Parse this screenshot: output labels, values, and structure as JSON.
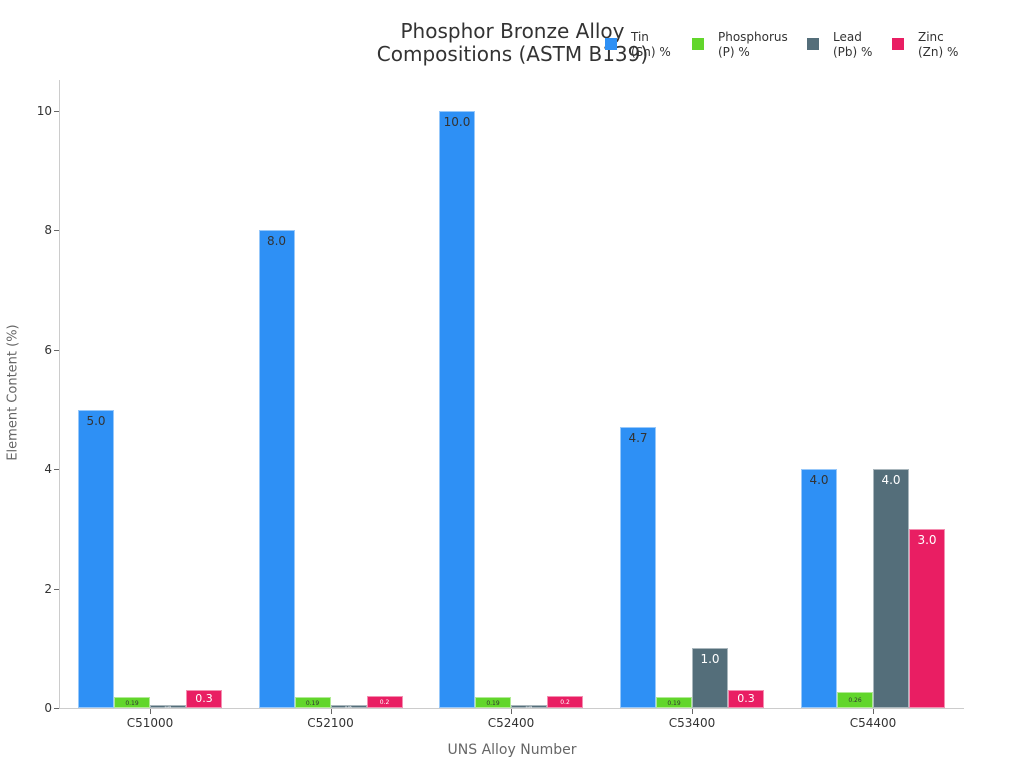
{
  "chart_data": {
    "type": "bar",
    "title": "Phosphor Bronze Alloy Compositions (ASTM B139)",
    "title_lines": [
      "Phosphor Bronze Alloy",
      "Compositions (ASTM B139)"
    ],
    "xlabel": "UNS Alloy Number",
    "ylabel": "Element Content (%)",
    "ylim": [
      0,
      10.5
    ],
    "yticks": [
      0,
      2,
      4,
      6,
      8,
      10
    ],
    "grid": false,
    "legend_position": "top-right",
    "categories": [
      "C51000",
      "C52100",
      "C52400",
      "C53400",
      "C54400"
    ],
    "series": [
      {
        "name": "Tin (Sn) %",
        "legend_lines": [
          "Tin",
          "(Sn) %"
        ],
        "color": "#2e90f5",
        "label_color": "#333333",
        "values": [
          5.0,
          8.0,
          10.0,
          4.7,
          4.0
        ],
        "labels": [
          "5.0",
          "8.0",
          "10.0",
          "4.7",
          "4.0"
        ]
      },
      {
        "name": "Phosphorus (P) %",
        "legend_lines": [
          "Phosphorus",
          "(P) %"
        ],
        "color": "#62d62b",
        "label_color": "#333333",
        "values": [
          0.19,
          0.19,
          0.19,
          0.19,
          0.26
        ],
        "labels": [
          "0.19",
          "0.19",
          "0.19",
          "0.19",
          "0.26"
        ]
      },
      {
        "name": "Lead (Pb) %",
        "legend_lines": [
          "Lead",
          "(Pb) %"
        ],
        "color": "#546e7a",
        "label_color": "#ffffff",
        "values": [
          0.05,
          0.05,
          0.05,
          1.0,
          4.0
        ],
        "labels": [
          "0.05",
          "0.05",
          "0.05",
          "1.0",
          "4.0"
        ]
      },
      {
        "name": "Zinc (Zn) %",
        "legend_lines": [
          "Zinc",
          "(Zn) %"
        ],
        "color": "#e91e63",
        "label_color": "#ffffff",
        "values": [
          0.3,
          0.2,
          0.2,
          0.3,
          3.0
        ],
        "labels": [
          "0.3",
          "0.2",
          "0.2",
          "0.3",
          "3.0"
        ]
      }
    ]
  }
}
